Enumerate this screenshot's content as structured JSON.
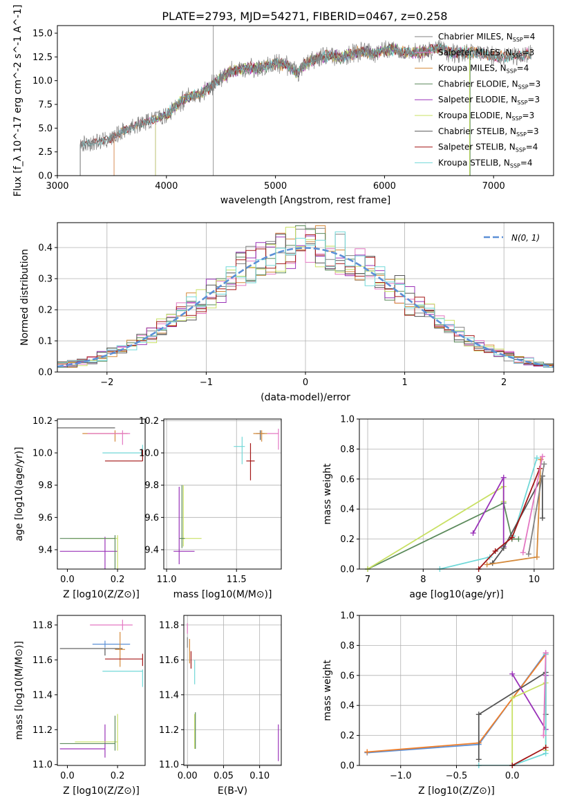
{
  "figure": {
    "title": "PLATE=2793, MJD=54271, FIBERID=0467, z=0.258"
  },
  "colors": {
    "chabrier_miles": "#808080",
    "salpeter_miles": "#e377c2",
    "kroupa_miles": "#d4893a",
    "chabrier_elodie": "#5b8a5b",
    "salpeter_elodie": "#9932b8",
    "kroupa_elodie": "#c8e063",
    "chabrier_stelib": "#555555",
    "salpeter_stelib": "#a31515",
    "kroupa_stelib": "#70d8d8",
    "gauss": "#5b8fd6",
    "blue": "#5b8fd6",
    "orange": "#f07f2a"
  },
  "chart_data": [
    {
      "id": "spectrum",
      "type": "line",
      "xlabel": "wavelength [Angstrom, rest frame]",
      "ylabel": "Flux [f_λ 10^-17 erg cm^-2 s^-1 A^-1]",
      "xlim": [
        3000,
        7550
      ],
      "ylim": [
        0,
        15.8
      ],
      "xticks": [
        "3000",
        "4000",
        "5000",
        "6000",
        "7000"
      ],
      "yticks": [
        "0.0",
        "2.5",
        "5.0",
        "7.5",
        "10.0",
        "12.5",
        "15.0"
      ],
      "grid": false,
      "legend": "top-right",
      "trend": [
        [
          3210,
          3.3
        ],
        [
          3300,
          3.4
        ],
        [
          3400,
          3.6
        ],
        [
          3500,
          3.9
        ],
        [
          3600,
          4.7
        ],
        [
          3700,
          5.2
        ],
        [
          3800,
          5.6
        ],
        [
          3900,
          6.0
        ],
        [
          4000,
          6.4
        ],
        [
          4100,
          7.5
        ],
        [
          4200,
          8.3
        ],
        [
          4300,
          8.6
        ],
        [
          4400,
          9.3
        ],
        [
          4500,
          10.3
        ],
        [
          4600,
          11.0
        ],
        [
          4700,
          11.3
        ],
        [
          4800,
          11.3
        ],
        [
          4900,
          11.4
        ],
        [
          5000,
          11.8
        ],
        [
          5100,
          11.6
        ],
        [
          5200,
          10.8
        ],
        [
          5300,
          12.0
        ],
        [
          5400,
          12.4
        ],
        [
          5500,
          12.7
        ],
        [
          5600,
          12.4
        ],
        [
          5700,
          12.8
        ],
        [
          5800,
          13.1
        ],
        [
          5900,
          12.9
        ],
        [
          6000,
          13.2
        ],
        [
          6100,
          13.3
        ],
        [
          6200,
          12.9
        ],
        [
          6300,
          13.0
        ],
        [
          6400,
          13.1
        ],
        [
          6500,
          13.6
        ],
        [
          6600,
          13.0
        ],
        [
          6700,
          12.9
        ],
        [
          6800,
          13.0
        ],
        [
          6900,
          12.9
        ],
        [
          7000,
          12.6
        ],
        [
          7100,
          12.5
        ],
        [
          7200,
          12.6
        ],
        [
          7350,
          12.9
        ]
      ],
      "series": [
        {
          "name": "Chabrier MILES, N_SSP=4",
          "label_main": "Chabrier MILES, N",
          "label_sub": "SSP",
          "label_tail": "=4",
          "start": 3210,
          "end": 7350
        },
        {
          "name": "Salpeter MILES, N_SSP=3",
          "label_main": "Salpeter MILES, N",
          "label_sub": "SSP",
          "label_tail": "=3",
          "start": 3520,
          "end": 7350
        },
        {
          "name": "Kroupa MILES, N_SSP=4",
          "label_main": "Kroupa MILES, N",
          "label_sub": "SSP",
          "label_tail": "=4",
          "start": 3520,
          "end": 7350
        },
        {
          "name": "Chabrier ELODIE, N_SSP=3",
          "label_main": "Chabrier ELODIE, N",
          "label_sub": "SSP",
          "label_tail": "=3",
          "start": 3900,
          "end": 6800
        },
        {
          "name": "Salpeter ELODIE, N_SSP=3",
          "label_main": "Salpeter ELODIE, N",
          "label_sub": "SSP",
          "label_tail": "=3",
          "start": 3900,
          "end": 6800
        },
        {
          "name": "Kroupa ELODIE, N_SSP=3",
          "label_main": "Kroupa ELODIE, N",
          "label_sub": "SSP",
          "label_tail": "=3",
          "start": 3900,
          "end": 6800
        },
        {
          "name": "Chabrier STELIB, N_SSP=3",
          "label_main": "Chabrier STELIB, N",
          "label_sub": "SSP",
          "label_tail": "=3",
          "start": 3210,
          "end": 7350
        },
        {
          "name": "Salpeter STELIB, N_SSP=4",
          "label_main": "Salpeter STELIB, N",
          "label_sub": "SSP",
          "label_tail": "=4",
          "start": 3210,
          "end": 7350
        },
        {
          "name": "Kroupa STELIB, N_SSP=4",
          "label_main": "Kroupa STELIB, N",
          "label_sub": "SSP",
          "label_tail": "=4",
          "start": 3210,
          "end": 7350
        }
      ]
    },
    {
      "id": "residuals",
      "type": "area",
      "xlabel": "(data-model)/error",
      "ylabel": "Normed distribution",
      "xlim": [
        -2.5,
        2.5
      ],
      "ylim": [
        0,
        0.48
      ],
      "xticks": [
        "−2",
        "−1",
        "0",
        "1",
        "2"
      ],
      "yticks": [
        "0.0",
        "0.1",
        "0.2",
        "0.3",
        "0.4"
      ],
      "grid": true,
      "legend": "top-right",
      "gauss_label": "N(0, 1)",
      "bin_width": 0.1,
      "peak": 0.47
    },
    {
      "id": "age-Z",
      "type": "scatter",
      "xlabel": "Z [log10(Z/Z⊙)]",
      "ylabel": "age  [log10(age/yr)]",
      "xlim": [
        -0.04,
        0.31
      ],
      "ylim": [
        9.28,
        10.21
      ],
      "xticks": [
        "0.0",
        "0.2"
      ],
      "yticks": [
        "9.4",
        "9.6",
        "9.8",
        "10.0",
        "10.2"
      ],
      "grid": false,
      "points": [
        {
          "c": "chabrier_stelib",
          "x": 0.15,
          "y": 10.155,
          "xe": [
            -0.24,
            0.19
          ],
          "ye": [
            0.0,
            0.0
          ]
        },
        {
          "c": "kroupa_miles",
          "x": 0.19,
          "y": 10.12,
          "xe": [
            0.06,
            0.24
          ],
          "ye": [
            0.05,
            0.02
          ]
        },
        {
          "c": "salpeter_miles",
          "x": 0.22,
          "y": 10.12,
          "xe": [
            0.08,
            0.25
          ],
          "ye": [
            0.07,
            0.02
          ]
        },
        {
          "c": "kroupa_stelib",
          "x": 0.3,
          "y": 10.0,
          "xe": [
            0.14,
            0.3
          ],
          "ye": [
            0.05,
            0.05
          ]
        },
        {
          "c": "salpeter_stelib",
          "x": 0.3,
          "y": 9.95,
          "xe": [
            0.15,
            0.3
          ],
          "ye": [
            0.0,
            0.07
          ]
        },
        {
          "c": "salpeter_elodie",
          "x": 0.15,
          "y": 9.39,
          "xe": [
            -0.03,
            0.2
          ],
          "ye": [
            0.41,
            0.09
          ]
        },
        {
          "c": "kroupa_elodie",
          "x": 0.2,
          "y": 9.47,
          "xe": [
            0.01,
            0.2
          ],
          "ye": [
            0.33,
            0.02
          ]
        },
        {
          "c": "chabrier_elodie",
          "x": 0.19,
          "y": 9.47,
          "xe": [
            -0.03,
            0.19
          ],
          "ye": [
            0.33,
            0.02
          ]
        }
      ]
    },
    {
      "id": "age-mass",
      "type": "scatter",
      "xlabel": "mass [log10(M/M⊙)]",
      "ylabel": "",
      "xlim": [
        10.98,
        11.82
      ],
      "ylim": [
        9.28,
        10.21
      ],
      "xticks": [
        "11.0",
        "11.5"
      ],
      "yticks": [
        "9.4",
        "9.6",
        "9.8",
        "10.0",
        "10.2"
      ],
      "grid": true,
      "points": [
        {
          "c": "chabrier_stelib",
          "x": 11.67,
          "y": 10.12,
          "xe": [
            11.64,
            11.7
          ],
          "ye": [
            0.04,
            0.02
          ]
        },
        {
          "c": "kroupa_miles",
          "x": 11.68,
          "y": 10.12,
          "xe": [
            11.62,
            11.72
          ],
          "ye": [
            0.05,
            0.02
          ]
        },
        {
          "c": "salpeter_miles",
          "x": 11.8,
          "y": 10.12,
          "xe": [
            11.72,
            11.8
          ],
          "ye": [
            0.1,
            0.03
          ]
        },
        {
          "c": "kroupa_stelib",
          "x": 11.54,
          "y": 10.04,
          "xe": [
            11.48,
            11.56
          ],
          "ye": [
            0.11,
            0.06
          ]
        },
        {
          "c": "salpeter_stelib",
          "x": 11.6,
          "y": 9.95,
          "xe": [
            11.57,
            11.63
          ],
          "ye": [
            0.12,
            0.11
          ]
        },
        {
          "c": "salpeter_elodie",
          "x": 11.09,
          "y": 9.39,
          "xe": [
            11.05,
            11.2
          ],
          "ye": [
            0.08,
            0.4
          ]
        },
        {
          "c": "kroupa_elodie",
          "x": 11.12,
          "y": 9.47,
          "xe": [
            11.1,
            11.25
          ],
          "ye": [
            0.05,
            0.33
          ]
        },
        {
          "c": "chabrier_elodie",
          "x": 11.11,
          "y": 9.47,
          "xe": [
            11.09,
            11.13
          ],
          "ye": [
            0.06,
            0.33
          ]
        }
      ]
    },
    {
      "id": "weight-age",
      "type": "line",
      "xlabel": "age  [log10(age/yr)]",
      "ylabel": "mass weight",
      "xlim": [
        6.85,
        10.35
      ],
      "ylim": [
        0,
        1.0
      ],
      "xticks": [
        "7",
        "8",
        "9",
        "10"
      ],
      "yticks": [
        "0.0",
        "0.2",
        "0.4",
        "0.6",
        "0.8",
        "1.0"
      ],
      "grid": true,
      "series": [
        {
          "c": "chabrier_elodie",
          "x": [
            7.0,
            9.45,
            9.6,
            9.72
          ],
          "y": [
            0.0,
            0.44,
            0.2,
            0.2
          ]
        },
        {
          "c": "kroupa_elodie",
          "x": [
            7.0,
            9.45,
            9.45
          ],
          "y": [
            0.0,
            0.55,
            0.45
          ]
        },
        {
          "c": "salpeter_elodie",
          "x": [
            8.9,
            9.45,
            9.45
          ],
          "y": [
            0.24,
            0.61,
            0.15
          ]
        },
        {
          "c": "kroupa_stelib",
          "x": [
            8.3,
            9.2,
            9.62,
            10.05
          ],
          "y": [
            0.0,
            0.08,
            0.22,
            0.74
          ]
        },
        {
          "c": "chabrier_stelib",
          "x": [
            9.25,
            9.45,
            10.15,
            10.15
          ],
          "y": [
            0.04,
            0.14,
            0.62,
            0.34
          ]
        },
        {
          "c": "salpeter_stelib",
          "x": [
            9.0,
            9.3,
            9.6,
            10.1
          ],
          "y": [
            0.0,
            0.12,
            0.21,
            0.67
          ]
        },
        {
          "c": "kroupa_miles",
          "x": [
            9.15,
            10.05,
            10.12
          ],
          "y": [
            0.03,
            0.08,
            0.73
          ]
        },
        {
          "c": "salpeter_miles",
          "x": [
            9.8,
            10.15
          ],
          "y": [
            0.11,
            0.75
          ]
        },
        {
          "c": "chabrier_miles",
          "x": [
            9.9,
            10.18
          ],
          "y": [
            0.1,
            0.7
          ]
        }
      ]
    },
    {
      "id": "mass-Z",
      "type": "scatter",
      "xlabel": "Z [log10(Z/Z⊙)]",
      "ylabel": "mass [log10(M/M⊙)]",
      "xlim": [
        -0.04,
        0.31
      ],
      "ylim": [
        10.995,
        11.855
      ],
      "xticks": [
        "0.0",
        "0.2"
      ],
      "yticks": [
        "11.0",
        "11.2",
        "11.4",
        "11.6",
        "11.8"
      ],
      "grid": false,
      "points": [
        {
          "c": "salpeter_miles",
          "x": 0.22,
          "y": 11.8,
          "xe": [
            0.09,
            0.26
          ],
          "ye": [
            0.03,
            0.03
          ]
        },
        {
          "c": "blue",
          "x": 0.15,
          "y": 11.69,
          "xe": [
            0.1,
            0.25
          ],
          "ye": [
            0.02,
            0.02
          ]
        },
        {
          "c": "chabrier_stelib",
          "x": 0.15,
          "y": 11.665,
          "xe": [
            -0.03,
            0.22
          ],
          "ye": [
            0.04,
            0.0
          ]
        },
        {
          "c": "kroupa_miles",
          "x": 0.21,
          "y": 11.66,
          "xe": [
            0.19,
            0.23
          ],
          "ye": [
            0.1,
            0.1
          ]
        },
        {
          "c": "salpeter_stelib",
          "x": 0.3,
          "y": 11.605,
          "xe": [
            0.15,
            0.3
          ],
          "ye": [
            0.04,
            0.03
          ]
        },
        {
          "c": "kroupa_stelib",
          "x": 0.3,
          "y": 11.535,
          "xe": [
            0.14,
            0.3
          ],
          "ye": [
            0.09,
            0.01
          ]
        },
        {
          "c": "salpeter_elodie",
          "x": 0.15,
          "y": 11.09,
          "xe": [
            -0.03,
            0.15
          ],
          "ye": [
            0.05,
            0.14
          ]
        },
        {
          "c": "kroupa_elodie",
          "x": 0.2,
          "y": 11.13,
          "xe": [
            0.03,
            0.2
          ],
          "ye": [
            0.05,
            0.16
          ]
        },
        {
          "c": "chabrier_elodie",
          "x": 0.19,
          "y": 11.12,
          "xe": [
            -0.03,
            0.19
          ],
          "ye": [
            0.04,
            0.16
          ]
        }
      ]
    },
    {
      "id": "mass-EBV",
      "type": "scatter",
      "xlabel": "E(B-V)",
      "ylabel": "",
      "xlim": [
        -0.005,
        0.13
      ],
      "ylim": [
        10.995,
        11.855
      ],
      "xticks": [
        "0.00",
        "0.05",
        "0.10"
      ],
      "yticks": [
        "11.0",
        "11.2",
        "11.4",
        "11.6",
        "11.8"
      ],
      "grid": true,
      "points": [
        {
          "c": "salpeter_miles",
          "x": 0.0,
          "y": 11.78,
          "xe": [
            0.0,
            0.0
          ],
          "ye": [
            0.03,
            0.03
          ]
        },
        {
          "c": "chabrier_miles",
          "x": 0.0,
          "y": 11.7,
          "xe": [
            0.0,
            0.0
          ],
          "ye": [
            0.03,
            0.03
          ]
        },
        {
          "c": "kroupa_miles",
          "x": 0.003,
          "y": 11.66,
          "xe": [
            0.003,
            0.003
          ],
          "ye": [
            0.08,
            0.06
          ]
        },
        {
          "c": "salpeter_stelib",
          "x": 0.005,
          "y": 11.6,
          "xe": [
            0.005,
            0.005
          ],
          "ye": [
            0.05,
            0.05
          ]
        },
        {
          "c": "kroupa_stelib",
          "x": 0.01,
          "y": 11.53,
          "xe": [
            0.01,
            0.01
          ],
          "ye": [
            0.07,
            0.07
          ]
        },
        {
          "c": "kroupa_elodie",
          "x": 0.01,
          "y": 11.13,
          "xe": [
            0.01,
            0.01
          ],
          "ye": [
            0.04,
            0.16
          ]
        },
        {
          "c": "chabrier_elodie",
          "x": 0.011,
          "y": 11.13,
          "xe": [
            0.011,
            0.011
          ],
          "ye": [
            0.04,
            0.17
          ]
        },
        {
          "c": "salpeter_elodie",
          "x": 0.126,
          "y": 11.13,
          "xe": [
            0.126,
            0.126
          ],
          "ye": [
            0.11,
            0.1
          ]
        }
      ]
    },
    {
      "id": "weight-Z",
      "type": "line",
      "xlabel": "Z [log10(Z/Z⊙)]",
      "ylabel": "mass weight",
      "xlim": [
        -1.37,
        0.37
      ],
      "ylim": [
        0,
        1.0
      ],
      "xticks": [
        "−1.0",
        "−0.5",
        "0.0"
      ],
      "yticks": [
        "0.0",
        "0.2",
        "0.4",
        "0.6",
        "0.8",
        "1.0"
      ],
      "grid": true,
      "series": [
        {
          "c": "blue",
          "x": [
            -1.3,
            -0.3,
            0.3
          ],
          "y": [
            0.085,
            0.14,
            0.75
          ]
        },
        {
          "c": "orange",
          "x": [
            -1.3,
            -0.3,
            0.3
          ],
          "y": [
            0.09,
            0.15,
            0.74
          ]
        },
        {
          "c": "chabrier_stelib",
          "x": [
            -0.3,
            -0.3,
            0.3,
            0.3
          ],
          "y": [
            0.04,
            0.34,
            0.62,
            0.34
          ]
        },
        {
          "c": "salpeter_elodie",
          "x": [
            0.0,
            0.3,
            0.3
          ],
          "y": [
            0.61,
            0.24,
            0.6
          ]
        },
        {
          "c": "kroupa_elodie",
          "x": [
            0.0,
            0.0,
            0.3,
            0.3
          ],
          "y": [
            0.0,
            0.45,
            0.55,
            0.1
          ]
        },
        {
          "c": "kroupa_stelib",
          "x": [
            -0.3,
            0.0,
            0.3,
            0.3
          ],
          "y": [
            0.0,
            0.0,
            0.08,
            0.74
          ]
        },
        {
          "c": "salpeter_stelib",
          "x": [
            0.0,
            0.3
          ],
          "y": [
            0.0,
            0.12
          ]
        },
        {
          "c": "salpeter_miles",
          "x": [
            0.28,
            0.3
          ],
          "y": [
            0.2,
            0.75
          ]
        }
      ]
    }
  ]
}
